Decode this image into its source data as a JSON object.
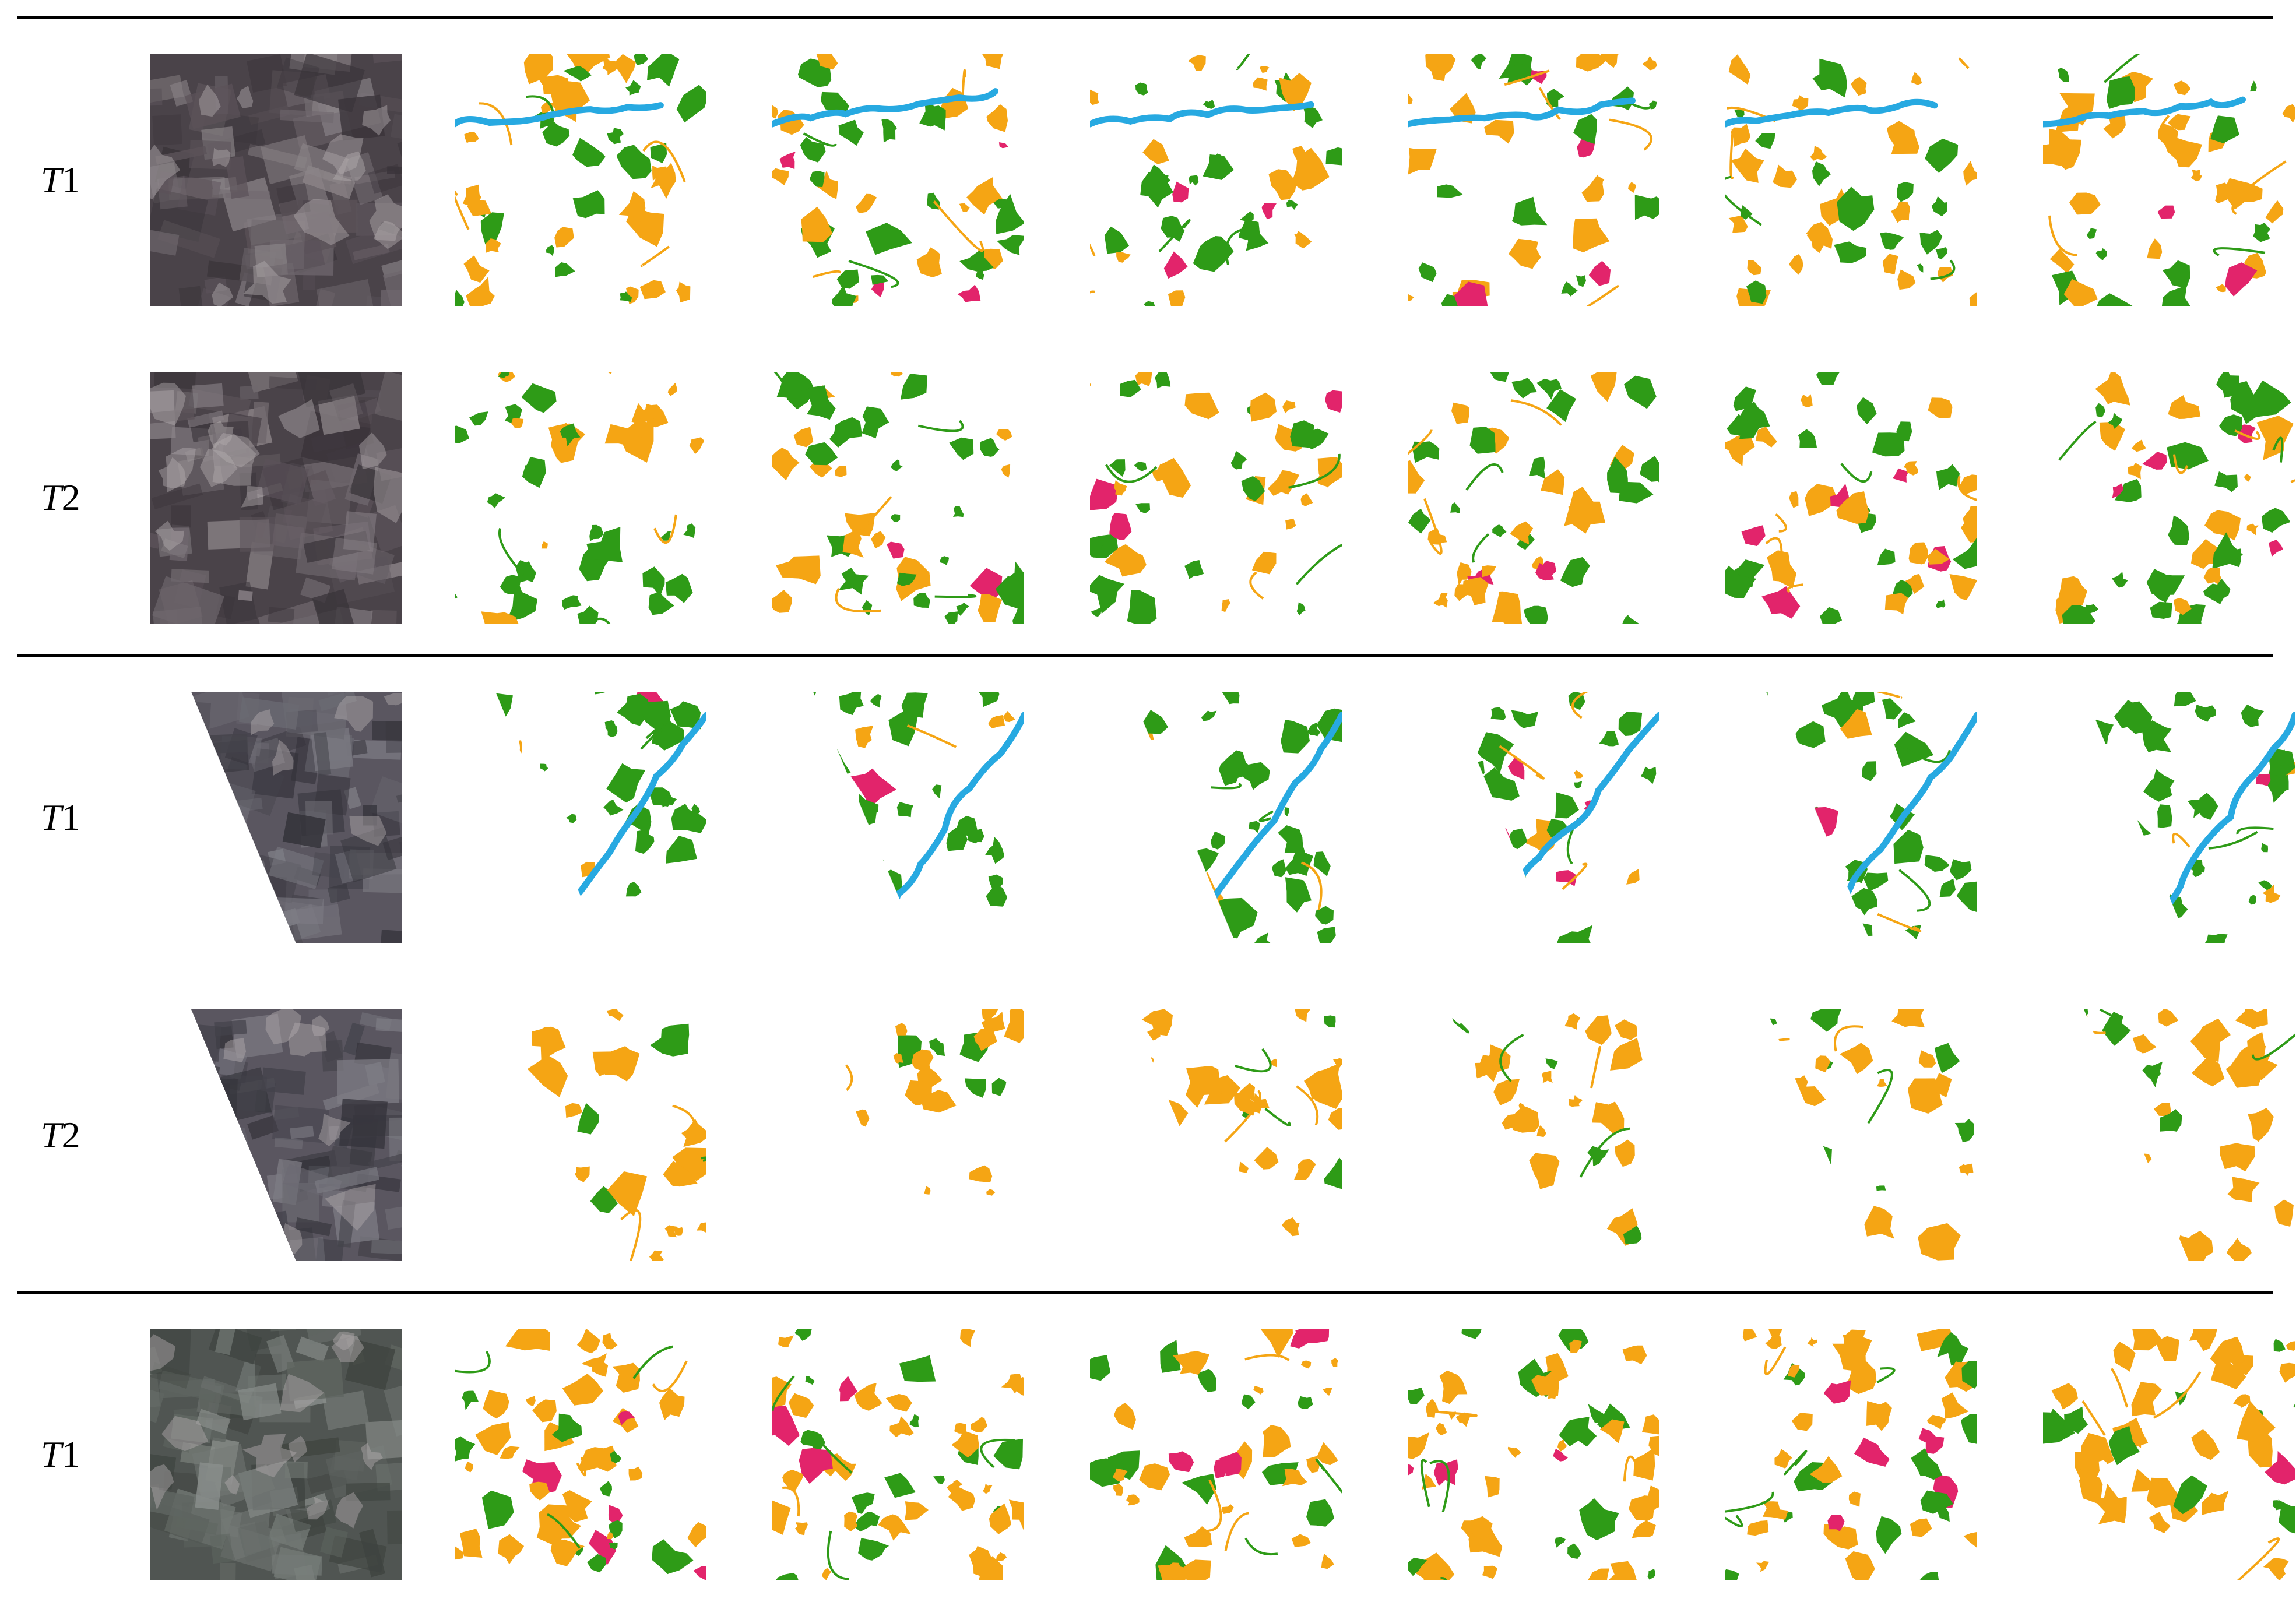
{
  "figure": {
    "colors": {
      "farmland": "#f5a514",
      "vegetation": "#2e9b17",
      "water": "#27a9e1",
      "built_up": "#e2246b",
      "background": "#ffffff"
    },
    "column_count": 7,
    "rows": [
      {
        "label_prefix": "T",
        "label_num": "1",
        "scene": "scene-1",
        "time": "t1"
      },
      {
        "label_prefix": "T",
        "label_num": "2",
        "scene": "scene-1",
        "time": "t2"
      },
      {
        "label_prefix": "T",
        "label_num": "1",
        "scene": "scene-2",
        "time": "t1"
      },
      {
        "label_prefix": "T",
        "label_num": "2",
        "scene": "scene-2",
        "time": "t2"
      },
      {
        "label_prefix": "T",
        "label_num": "1",
        "scene": "scene-3",
        "time": "t1"
      }
    ]
  }
}
